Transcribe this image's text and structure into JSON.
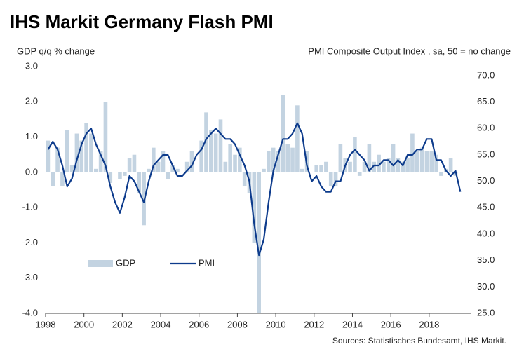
{
  "chart_data": {
    "type": "bar-line",
    "title": "IHS Markit Germany Flash PMI",
    "y_label": "GDP q/q % change",
    "y2_label": "PMI Composite  Output Index , sa, 50 = no change",
    "source": "Sources: Statistisches Bundesamt, IHS Markit.",
    "xlim": [
      1998,
      2020.2
    ],
    "xticks": [
      1998,
      2000,
      2002,
      2004,
      2006,
      2008,
      2010,
      2012,
      2014,
      2016,
      2018
    ],
    "ylim": [
      -4,
      3
    ],
    "yticks": [
      {
        "value": -4,
        "label": "-4.0"
      },
      {
        "value": -3,
        "label": "-3.0"
      },
      {
        "value": -2,
        "label": "-2.0"
      },
      {
        "value": -1,
        "label": "-1.0"
      },
      {
        "value": 0,
        "label": "0.0"
      },
      {
        "value": 1,
        "label": "1.0"
      },
      {
        "value": 2,
        "label": "2.0"
      },
      {
        "value": 3,
        "label": "3.0"
      }
    ],
    "y2lim": [
      25,
      71.7
    ],
    "y2ticks": [
      {
        "value": 25,
        "label": "25.0"
      },
      {
        "value": 30,
        "label": "30.0"
      },
      {
        "value": 35,
        "label": "35.0"
      },
      {
        "value": 40,
        "label": "40.0"
      },
      {
        "value": 45,
        "label": "45.0"
      },
      {
        "value": 50,
        "label": "50.0"
      },
      {
        "value": 55,
        "label": "55.0"
      },
      {
        "value": 60,
        "label": "60.0"
      },
      {
        "value": 65,
        "label": "65.0"
      },
      {
        "value": 70,
        "label": "70.0"
      }
    ],
    "series": [
      {
        "name": "GDP",
        "type": "bar",
        "color": "#c3d3e1",
        "x": [
          1998.125,
          1998.375,
          1998.625,
          1998.875,
          1999.125,
          1999.375,
          1999.625,
          1999.875,
          2000.125,
          2000.375,
          2000.625,
          2000.875,
          2001.125,
          2001.375,
          2001.625,
          2001.875,
          2002.125,
          2002.375,
          2002.625,
          2002.875,
          2003.125,
          2003.375,
          2003.625,
          2003.875,
          2004.125,
          2004.375,
          2004.625,
          2004.875,
          2005.125,
          2005.375,
          2005.625,
          2005.875,
          2006.125,
          2006.375,
          2006.625,
          2006.875,
          2007.125,
          2007.375,
          2007.625,
          2007.875,
          2008.125,
          2008.375,
          2008.625,
          2008.875,
          2009.125,
          2009.375,
          2009.625,
          2009.875,
          2010.125,
          2010.375,
          2010.625,
          2010.875,
          2011.125,
          2011.375,
          2011.625,
          2011.875,
          2012.125,
          2012.375,
          2012.625,
          2012.875,
          2013.125,
          2013.375,
          2013.625,
          2013.875,
          2014.125,
          2014.375,
          2014.625,
          2014.875,
          2015.125,
          2015.375,
          2015.625,
          2015.875,
          2016.125,
          2016.375,
          2016.625,
          2016.875,
          2017.125,
          2017.375,
          2017.625,
          2017.875,
          2018.125,
          2018.375,
          2018.625,
          2018.875,
          2019.125,
          2019.375
        ],
        "values": [
          0.9,
          -0.4,
          0.7,
          -0.4,
          1.2,
          0.2,
          1.1,
          0.9,
          1.4,
          1.1,
          0.1,
          0.6,
          2.0,
          -0.3,
          0.0,
          -0.2,
          -0.1,
          0.4,
          0.5,
          -0.6,
          -1.5,
          0.1,
          0.7,
          0.3,
          0.6,
          -0.2,
          0.2,
          0.1,
          0.0,
          0.3,
          0.6,
          0.0,
          0.9,
          1.7,
          1.2,
          1.1,
          1.5,
          0.3,
          0.8,
          0.5,
          0.7,
          -0.4,
          -0.6,
          -2.0,
          -4.0,
          0.1,
          0.6,
          0.7,
          0.6,
          2.2,
          0.8,
          0.7,
          1.9,
          0.1,
          0.6,
          0.0,
          0.2,
          0.2,
          0.3,
          -0.4,
          -0.4,
          0.8,
          0.4,
          0.3,
          1.0,
          -0.1,
          0.3,
          0.8,
          0.3,
          0.5,
          0.3,
          0.4,
          0.8,
          0.4,
          0.3,
          0.4,
          1.1,
          0.6,
          0.7,
          0.6,
          0.6,
          0.5,
          -0.1,
          0.1,
          0.4,
          -0.1
        ]
      },
      {
        "name": "PMI",
        "type": "line",
        "axis": "y2",
        "color": "#0d3b8c",
        "x": [
          1998.125,
          1998.375,
          1998.625,
          1998.875,
          1999.125,
          1999.375,
          1999.625,
          1999.875,
          2000.125,
          2000.375,
          2000.625,
          2000.875,
          2001.125,
          2001.375,
          2001.625,
          2001.875,
          2002.125,
          2002.375,
          2002.625,
          2002.875,
          2003.125,
          2003.375,
          2003.625,
          2003.875,
          2004.125,
          2004.375,
          2004.625,
          2004.875,
          2005.125,
          2005.375,
          2005.625,
          2005.875,
          2006.125,
          2006.375,
          2006.625,
          2006.875,
          2007.125,
          2007.375,
          2007.625,
          2007.875,
          2008.125,
          2008.375,
          2008.625,
          2008.875,
          2009.125,
          2009.375,
          2009.625,
          2009.875,
          2010.125,
          2010.375,
          2010.625,
          2010.875,
          2011.125,
          2011.375,
          2011.625,
          2011.875,
          2012.125,
          2012.375,
          2012.625,
          2012.875,
          2013.125,
          2013.375,
          2013.625,
          2013.875,
          2014.125,
          2014.375,
          2014.625,
          2014.875,
          2015.125,
          2015.375,
          2015.625,
          2015.875,
          2016.125,
          2016.375,
          2016.625,
          2016.875,
          2017.125,
          2017.375,
          2017.625,
          2017.875,
          2018.125,
          2018.375,
          2018.625,
          2018.875,
          2019.125,
          2019.375,
          2019.625
        ],
        "values": [
          56,
          57.5,
          56,
          53,
          49,
          50.5,
          54,
          57,
          59,
          60,
          57,
          55,
          53,
          49,
          46,
          44,
          47,
          51,
          50,
          48,
          46,
          50,
          53,
          54,
          55,
          55,
          53,
          51,
          51,
          52,
          53,
          55,
          56,
          58,
          59,
          60,
          59,
          58,
          58,
          57,
          55,
          53,
          50,
          42,
          36,
          39,
          46,
          52,
          55,
          58,
          58,
          59,
          61,
          59,
          53,
          50,
          51,
          49,
          48,
          48,
          50,
          50,
          53,
          55,
          56,
          55,
          54,
          52,
          53,
          53,
          54,
          54,
          53,
          54,
          53,
          55,
          55,
          56,
          56,
          58,
          58,
          54,
          54,
          52,
          51,
          52,
          48
        ]
      }
    ],
    "legend": "lower-left"
  }
}
